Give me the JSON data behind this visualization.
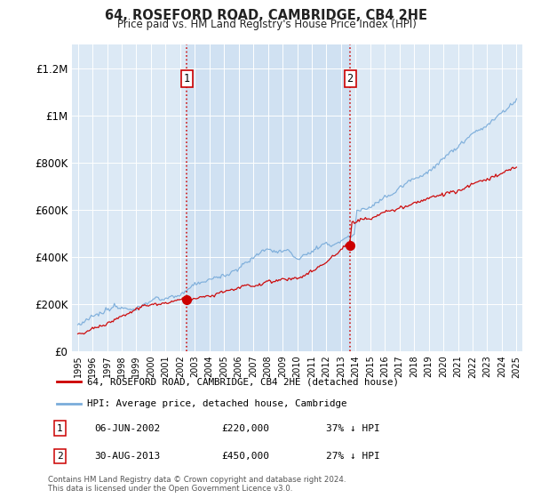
{
  "title": "64, ROSEFORD ROAD, CAMBRIDGE, CB4 2HE",
  "subtitle": "Price paid vs. HM Land Registry's House Price Index (HPI)",
  "background_color": "#ffffff",
  "plot_bg_color": "#dce9f5",
  "shaded_bg_color": "#c8ddf0",
  "ylim": [
    0,
    1300000
  ],
  "yticks": [
    0,
    200000,
    400000,
    600000,
    800000,
    1000000,
    1200000
  ],
  "ytick_labels": [
    "£0",
    "£200K",
    "£400K",
    "£600K",
    "£800K",
    "£1M",
    "£1.2M"
  ],
  "xstart": 1995,
  "xend": 2025,
  "sale1_x": 2002.44,
  "sale1_price": 220000,
  "sale2_x": 2013.62,
  "sale2_price": 450000,
  "legend_line1": "64, ROSEFORD ROAD, CAMBRIDGE, CB4 2HE (detached house)",
  "legend_line2": "HPI: Average price, detached house, Cambridge",
  "footnote": "Contains HM Land Registry data © Crown copyright and database right 2024.\nThis data is licensed under the Open Government Licence v3.0.",
  "red_color": "#cc0000",
  "blue_color": "#7aacda",
  "annot_box_edge": "#cc0000",
  "vline_color": "#cc0000"
}
